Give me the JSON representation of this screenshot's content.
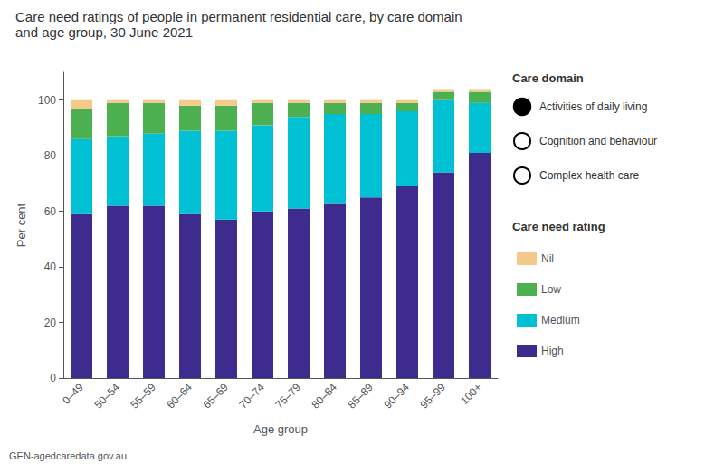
{
  "chart_data": {
    "type": "bar",
    "title": "Care need ratings of people in permanent residential care, by care domain",
    "subtitle": "and age group, 30 June 2021",
    "xlabel": "Age group",
    "ylabel": "Per cent",
    "categories": [
      "0–49",
      "50–54",
      "55–59",
      "60–64",
      "65–69",
      "70–74",
      "75–79",
      "80–84",
      "85–89",
      "90–94",
      "95–99",
      "100+"
    ],
    "series": [
      {
        "name": "High",
        "color": "#3d2b8e",
        "values": [
          59,
          62,
          62,
          59,
          57,
          60,
          61,
          63,
          65,
          69,
          74,
          81
        ]
      },
      {
        "name": "Medium",
        "color": "#00c0d4",
        "values": [
          27,
          25,
          26,
          30,
          32,
          31,
          33,
          32,
          30,
          27,
          26,
          18
        ]
      },
      {
        "name": "Low",
        "color": "#4caf50",
        "values": [
          11,
          12,
          11,
          9,
          9,
          8,
          5,
          4,
          4,
          3,
          3,
          4
        ]
      },
      {
        "name": "Nil",
        "color": "#f5c98a",
        "values": [
          3,
          1,
          1,
          2,
          2,
          1,
          1,
          1,
          1,
          1,
          1,
          1
        ]
      }
    ],
    "stacked": true,
    "ylim": [
      0,
      110
    ],
    "yticks": [
      0,
      20,
      40,
      60,
      80,
      100
    ],
    "grid": false,
    "legend": "right",
    "legend_title": "Care need rating",
    "annotations": [
      "Care domain",
      "Activities of daily living",
      "Cognition and behaviour",
      "Complex health care"
    ],
    "footnote": "GEN-agedcaredata.gov.au"
  }
}
